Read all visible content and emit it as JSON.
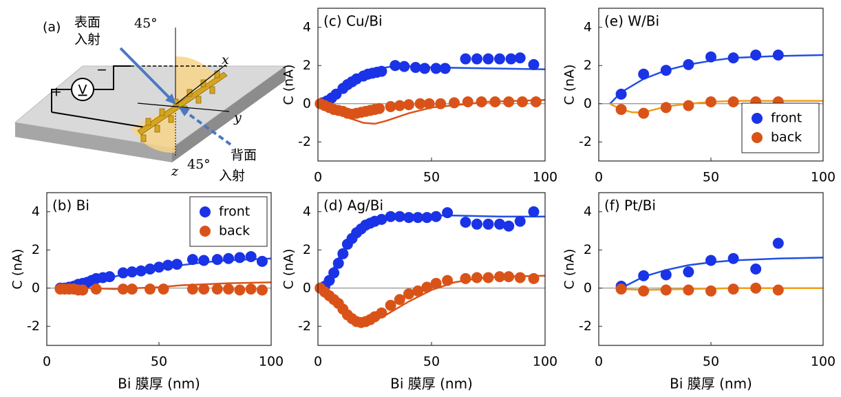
{
  "diagram": {
    "label": "(a)",
    "front_incidence": [
      "表面",
      "入射"
    ],
    "back_incidence": [
      "背面",
      "入射"
    ],
    "angle_top": "45°",
    "angle_bottom": "45°",
    "axes": {
      "x": "x",
      "y": "y",
      "z": "z"
    },
    "meter": "V",
    "plus": "+",
    "minus": "−"
  },
  "chart_data": [
    {
      "type": "scatter",
      "title": "(b) Bi",
      "ylabel": "C (nA)",
      "xlabel": "Bi 膜厚 (nm)",
      "xlim": [
        0,
        100
      ],
      "ylim": [
        -3,
        5
      ],
      "xticks": [
        0,
        50,
        100
      ],
      "yticks": [
        -2,
        0,
        2,
        4
      ],
      "zero_line": true,
      "legend": "upper right",
      "series": [
        {
          "name": "front",
          "color": "#1a33e6",
          "x": [
            6,
            8,
            10,
            12,
            14,
            16,
            18,
            20,
            22,
            25,
            28,
            34,
            38,
            42,
            46,
            50,
            54,
            58,
            65,
            70,
            76,
            81,
            86,
            91,
            96
          ],
          "values": [
            0,
            0,
            0.05,
            0.1,
            0.2,
            0.25,
            0.3,
            0.4,
            0.5,
            0.55,
            0.6,
            0.8,
            0.85,
            0.9,
            1.0,
            1.1,
            1.2,
            1.25,
            1.5,
            1.45,
            1.5,
            1.55,
            1.6,
            1.65,
            1.4
          ]
        },
        {
          "name": "back",
          "color": "#d95319",
          "x": [
            6,
            8,
            10,
            12,
            14,
            16,
            22,
            34,
            38,
            46,
            52,
            65,
            70,
            76,
            81,
            86,
            91,
            96
          ],
          "values": [
            -0.05,
            -0.05,
            -0.05,
            -0.05,
            -0.1,
            -0.1,
            -0.05,
            -0.05,
            -0.05,
            -0.05,
            -0.05,
            -0.05,
            -0.05,
            -0.05,
            -0.05,
            -0.1,
            -0.05,
            -0.1
          ]
        }
      ],
      "fits": [
        {
          "color": "#2050e0",
          "x": [
            5,
            10,
            20,
            30,
            40,
            50,
            60,
            70,
            80,
            90,
            100
          ],
          "values": [
            0,
            0.1,
            0.35,
            0.6,
            0.85,
            1.05,
            1.2,
            1.35,
            1.45,
            1.5,
            1.55
          ]
        },
        {
          "color": "#d95319",
          "x": [
            5,
            20,
            30,
            40,
            50,
            60,
            70,
            80,
            100
          ],
          "values": [
            0,
            0,
            -0.05,
            0,
            0.05,
            0.15,
            0.2,
            0.25,
            0.3
          ]
        }
      ]
    },
    {
      "type": "scatter",
      "title": "(c) Cu/Bi",
      "ylabel": "C (nA)",
      "xlim": [
        0,
        100
      ],
      "ylim": [
        -3,
        5
      ],
      "xticks": [
        0,
        50,
        100
      ],
      "yticks": [
        -2,
        0,
        2,
        4
      ],
      "zero_line": true,
      "series": [
        {
          "color": "#1a33e6",
          "x": [
            2,
            4,
            6,
            8,
            11,
            13,
            15,
            17,
            20,
            22,
            24,
            26,
            28,
            34,
            38,
            43,
            47,
            52,
            56,
            65,
            70,
            75,
            80,
            85,
            89,
            95
          ],
          "values": [
            0.05,
            0.15,
            0.3,
            0.5,
            0.8,
            1.0,
            1.15,
            1.3,
            1.45,
            1.55,
            1.6,
            1.65,
            1.7,
            2.0,
            1.95,
            1.9,
            1.85,
            1.85,
            1.85,
            2.35,
            2.35,
            2.35,
            2.35,
            2.35,
            2.4,
            2.05
          ]
        },
        {
          "color": "#d95319",
          "x": [
            1,
            3,
            5,
            7,
            9,
            11,
            13,
            15,
            17,
            19,
            21,
            23,
            25,
            27,
            32,
            36,
            40,
            45,
            49,
            54,
            60,
            66,
            72,
            78,
            84,
            90,
            96
          ],
          "values": [
            0,
            -0.1,
            -0.2,
            -0.3,
            -0.35,
            -0.4,
            -0.5,
            -0.55,
            -0.5,
            -0.45,
            -0.4,
            -0.35,
            -0.3,
            -0.25,
            -0.15,
            -0.1,
            -0.05,
            0,
            0,
            0,
            0.05,
            0.1,
            0.1,
            0.1,
            0.1,
            0.1,
            0.1
          ]
        }
      ],
      "fits": [
        {
          "color": "#2050e0",
          "x": [
            0,
            5,
            10,
            15,
            20,
            25,
            30,
            35,
            50,
            75,
            100
          ],
          "values": [
            0,
            0.2,
            0.6,
            1.0,
            1.4,
            1.7,
            1.9,
            2.0,
            1.9,
            1.85,
            1.8
          ]
        },
        {
          "color": "#d95319",
          "x": [
            0,
            5,
            10,
            15,
            20,
            25,
            30,
            40,
            50,
            75,
            100
          ],
          "values": [
            0,
            -0.3,
            -0.6,
            -0.8,
            -1.0,
            -1.05,
            -0.9,
            -0.5,
            -0.2,
            0.1,
            0.2
          ]
        }
      ]
    },
    {
      "type": "scatter",
      "title": "(d) Ag/Bi",
      "ylabel": "C (nA)",
      "xlabel": "Bi 膜厚 (nm)",
      "xlim": [
        0,
        100
      ],
      "ylim": [
        -3,
        5
      ],
      "xticks": [
        0,
        50,
        100
      ],
      "yticks": [
        -2,
        0,
        2,
        4
      ],
      "zero_line": true,
      "series": [
        {
          "color": "#1a33e6",
          "x": [
            1,
            3,
            5,
            7,
            9,
            11,
            13,
            15,
            17,
            19,
            21,
            23,
            25,
            28,
            32,
            36,
            40,
            44,
            48,
            52,
            57,
            65,
            70,
            75,
            80,
            84,
            89,
            95
          ],
          "values": [
            0,
            0.1,
            0.4,
            0.8,
            1.3,
            1.8,
            2.3,
            2.6,
            2.9,
            3.1,
            3.3,
            3.4,
            3.5,
            3.6,
            3.75,
            3.75,
            3.7,
            3.7,
            3.7,
            3.75,
            3.95,
            3.45,
            3.35,
            3.35,
            3.35,
            3.25,
            3.5,
            4.0
          ]
        },
        {
          "color": "#d95319",
          "x": [
            1,
            3,
            5,
            7,
            9,
            11,
            13,
            15,
            17,
            19,
            21,
            23,
            25,
            28,
            32,
            36,
            40,
            44,
            48,
            52,
            57,
            65,
            70,
            75,
            80,
            84,
            89,
            95
          ],
          "values": [
            0,
            -0.2,
            -0.4,
            -0.6,
            -0.8,
            -1.1,
            -1.4,
            -1.6,
            -1.75,
            -1.8,
            -1.75,
            -1.65,
            -1.5,
            -1.3,
            -0.9,
            -0.6,
            -0.3,
            -0.15,
            0.05,
            0.25,
            0.4,
            0.5,
            0.55,
            0.55,
            0.6,
            0.6,
            0.55,
            0.5
          ]
        }
      ],
      "fits": [
        {
          "color": "#2050e0",
          "x": [
            0,
            5,
            10,
            15,
            20,
            30,
            40,
            50,
            60,
            80,
            100
          ],
          "values": [
            0,
            0.6,
            1.8,
            2.7,
            3.2,
            3.6,
            3.75,
            3.8,
            3.8,
            3.75,
            3.75
          ]
        },
        {
          "color": "#d95319",
          "x": [
            0,
            5,
            10,
            15,
            20,
            25,
            30,
            40,
            50,
            60,
            70,
            80,
            100
          ],
          "values": [
            0,
            -0.5,
            -1.2,
            -1.7,
            -1.85,
            -1.7,
            -1.4,
            -0.7,
            -0.1,
            0.3,
            0.5,
            0.6,
            0.65
          ]
        }
      ]
    },
    {
      "type": "scatter",
      "title": "(e) W/Bi",
      "ylabel": "C (nA)",
      "xlim": [
        0,
        100
      ],
      "ylim": [
        -3,
        5
      ],
      "xticks": [
        0,
        50,
        100
      ],
      "yticks": [
        -2,
        0,
        2,
        4
      ],
      "zero_line": true,
      "legend": "lower right",
      "series": [
        {
          "name": "front",
          "color": "#1a33e6",
          "x": [
            10,
            20,
            30,
            40,
            50,
            60,
            70,
            80
          ],
          "values": [
            0.5,
            1.55,
            1.75,
            2.05,
            2.45,
            2.4,
            2.55,
            2.55
          ]
        },
        {
          "name": "back",
          "color": "#d95319",
          "x": [
            10,
            20,
            30,
            40,
            50,
            60,
            70,
            80
          ],
          "values": [
            -0.3,
            -0.5,
            -0.2,
            -0.1,
            0.1,
            0.1,
            0.1,
            0.1
          ]
        }
      ],
      "fits": [
        {
          "color": "#2050e0",
          "x": [
            5,
            10,
            20,
            30,
            40,
            50,
            60,
            70,
            80,
            100
          ],
          "values": [
            0,
            0.6,
            1.3,
            1.75,
            2.05,
            2.25,
            2.4,
            2.45,
            2.5,
            2.55
          ]
        },
        {
          "color": "#f39c12",
          "x": [
            5,
            10,
            15,
            20,
            25,
            30,
            40,
            50,
            60,
            80,
            100
          ],
          "values": [
            0,
            -0.3,
            -0.45,
            -0.45,
            -0.3,
            -0.15,
            0,
            0.1,
            0.15,
            0.15,
            0.15
          ]
        }
      ]
    },
    {
      "type": "scatter",
      "title": "(f) Pt/Bi",
      "ylabel": "C (nA)",
      "xlabel": "Bi 膜厚 (nm)",
      "xlim": [
        0,
        100
      ],
      "ylim": [
        -3,
        5
      ],
      "xticks": [
        0,
        50,
        100
      ],
      "yticks": [
        -2,
        0,
        2,
        4
      ],
      "zero_line": true,
      "series": [
        {
          "color": "#1a33e6",
          "x": [
            10,
            20,
            30,
            40,
            50,
            60,
            70,
            80
          ],
          "values": [
            0.1,
            0.65,
            0.7,
            0.85,
            1.45,
            1.55,
            1.0,
            2.35
          ]
        },
        {
          "color": "#d95319",
          "x": [
            10,
            20,
            30,
            40,
            50,
            60,
            70,
            80
          ],
          "values": [
            -0.05,
            -0.15,
            -0.1,
            -0.1,
            -0.15,
            -0.05,
            0,
            -0.1
          ]
        }
      ],
      "fits": [
        {
          "color": "#2050e0",
          "x": [
            10,
            20,
            30,
            40,
            50,
            60,
            70,
            80,
            100
          ],
          "values": [
            0,
            0.6,
            0.95,
            1.2,
            1.35,
            1.45,
            1.5,
            1.55,
            1.6
          ]
        },
        {
          "color": "#f39c12",
          "x": [
            10,
            20,
            40,
            60,
            80,
            100
          ],
          "values": [
            -0.05,
            -0.1,
            -0.05,
            0,
            0,
            0
          ]
        }
      ]
    }
  ]
}
